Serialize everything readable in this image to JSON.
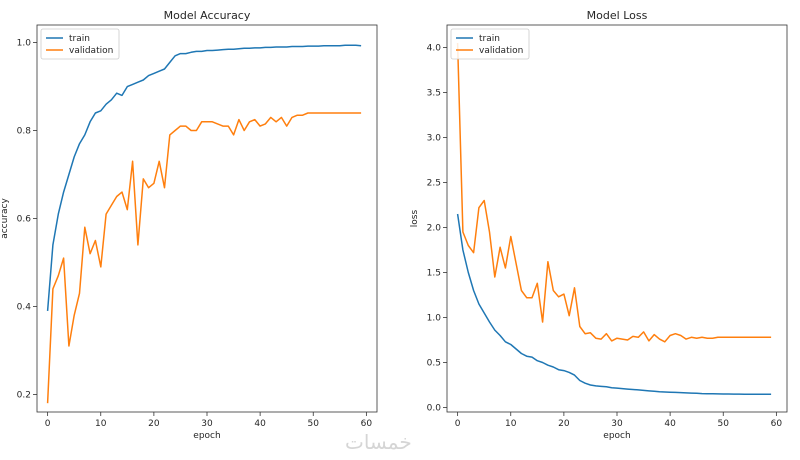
{
  "watermark": "خمسات",
  "chart_data": [
    {
      "type": "line",
      "title": "Model Accuracy",
      "xlabel": "epoch",
      "ylabel": "accuracy",
      "xlim": [
        -2,
        62
      ],
      "ylim": [
        0.16,
        1.04
      ],
      "xticks": [
        0,
        10,
        20,
        30,
        40,
        50,
        60
      ],
      "yticks": [
        0.2,
        0.4,
        0.6,
        0.8,
        1.0
      ],
      "ytick_labels": [
        "0.2",
        "0.4",
        "0.6",
        "0.8",
        "1.0"
      ],
      "legend_position": "top-left",
      "x": [
        0,
        1,
        2,
        3,
        4,
        5,
        6,
        7,
        8,
        9,
        10,
        11,
        12,
        13,
        14,
        15,
        16,
        17,
        18,
        19,
        20,
        21,
        22,
        23,
        24,
        25,
        26,
        27,
        28,
        29,
        30,
        31,
        32,
        33,
        34,
        35,
        36,
        37,
        38,
        39,
        40,
        41,
        42,
        43,
        44,
        45,
        46,
        47,
        48,
        49,
        50,
        51,
        52,
        53,
        54,
        55,
        56,
        57,
        58,
        59
      ],
      "series": [
        {
          "name": "train",
          "color": "#1f77b4",
          "values": [
            0.39,
            0.54,
            0.61,
            0.66,
            0.7,
            0.74,
            0.77,
            0.79,
            0.82,
            0.84,
            0.845,
            0.86,
            0.87,
            0.885,
            0.88,
            0.9,
            0.905,
            0.91,
            0.915,
            0.925,
            0.93,
            0.935,
            0.94,
            0.955,
            0.97,
            0.975,
            0.975,
            0.978,
            0.98,
            0.98,
            0.982,
            0.982,
            0.983,
            0.984,
            0.985,
            0.985,
            0.986,
            0.987,
            0.987,
            0.988,
            0.988,
            0.989,
            0.989,
            0.99,
            0.99,
            0.99,
            0.991,
            0.991,
            0.991,
            0.992,
            0.992,
            0.992,
            0.993,
            0.993,
            0.993,
            0.993,
            0.994,
            0.994,
            0.994,
            0.993
          ]
        },
        {
          "name": "validation",
          "color": "#ff7f0e",
          "values": [
            0.18,
            0.44,
            0.47,
            0.51,
            0.31,
            0.38,
            0.43,
            0.58,
            0.52,
            0.55,
            0.49,
            0.61,
            0.63,
            0.65,
            0.66,
            0.62,
            0.73,
            0.54,
            0.69,
            0.67,
            0.68,
            0.73,
            0.67,
            0.79,
            0.8,
            0.81,
            0.81,
            0.8,
            0.8,
            0.82,
            0.82,
            0.82,
            0.815,
            0.81,
            0.81,
            0.79,
            0.825,
            0.8,
            0.82,
            0.825,
            0.81,
            0.815,
            0.83,
            0.82,
            0.83,
            0.81,
            0.83,
            0.835,
            0.835,
            0.84,
            0.84,
            0.84,
            0.84,
            0.84,
            0.84,
            0.84,
            0.84,
            0.84,
            0.84,
            0.84
          ]
        }
      ]
    },
    {
      "type": "line",
      "title": "Model Loss",
      "xlabel": "epoch",
      "ylabel": "loss",
      "xlim": [
        -2,
        62
      ],
      "ylim": [
        -0.05,
        4.25
      ],
      "xticks": [
        0,
        10,
        20,
        30,
        40,
        50,
        60
      ],
      "yticks": [
        0.0,
        0.5,
        1.0,
        1.5,
        2.0,
        2.5,
        3.0,
        3.5,
        4.0
      ],
      "ytick_labels": [
        "0.0",
        "0.5",
        "1.0",
        "1.5",
        "2.0",
        "2.5",
        "3.0",
        "3.5",
        "4.0"
      ],
      "legend_position": "top-left",
      "x": [
        0,
        1,
        2,
        3,
        4,
        5,
        6,
        7,
        8,
        9,
        10,
        11,
        12,
        13,
        14,
        15,
        16,
        17,
        18,
        19,
        20,
        21,
        22,
        23,
        24,
        25,
        26,
        27,
        28,
        29,
        30,
        31,
        32,
        33,
        34,
        35,
        36,
        37,
        38,
        39,
        40,
        41,
        42,
        43,
        44,
        45,
        46,
        47,
        48,
        49,
        50,
        51,
        52,
        53,
        54,
        55,
        56,
        57,
        58,
        59
      ],
      "series": [
        {
          "name": "train",
          "color": "#1f77b4",
          "values": [
            2.15,
            1.75,
            1.5,
            1.3,
            1.15,
            1.05,
            0.95,
            0.86,
            0.8,
            0.73,
            0.7,
            0.65,
            0.6,
            0.57,
            0.56,
            0.52,
            0.5,
            0.47,
            0.45,
            0.42,
            0.41,
            0.39,
            0.36,
            0.3,
            0.27,
            0.25,
            0.24,
            0.235,
            0.23,
            0.22,
            0.215,
            0.21,
            0.205,
            0.2,
            0.195,
            0.19,
            0.185,
            0.18,
            0.175,
            0.172,
            0.17,
            0.168,
            0.165,
            0.162,
            0.16,
            0.158,
            0.155,
            0.153,
            0.152,
            0.151,
            0.15,
            0.15,
            0.149,
            0.149,
            0.148,
            0.148,
            0.148,
            0.147,
            0.147,
            0.147
          ]
        },
        {
          "name": "validation",
          "color": "#ff7f0e",
          "values": [
            4.05,
            1.95,
            1.8,
            1.72,
            2.22,
            2.3,
            1.95,
            1.45,
            1.78,
            1.55,
            1.9,
            1.6,
            1.3,
            1.22,
            1.22,
            1.38,
            0.95,
            1.62,
            1.3,
            1.23,
            1.26,
            1.02,
            1.33,
            0.9,
            0.82,
            0.83,
            0.77,
            0.76,
            0.82,
            0.74,
            0.77,
            0.76,
            0.75,
            0.79,
            0.78,
            0.84,
            0.74,
            0.81,
            0.76,
            0.73,
            0.8,
            0.82,
            0.8,
            0.76,
            0.78,
            0.77,
            0.78,
            0.77,
            0.77,
            0.78,
            0.78,
            0.78,
            0.78,
            0.78,
            0.78,
            0.78,
            0.78,
            0.78,
            0.78,
            0.78
          ]
        }
      ]
    }
  ]
}
